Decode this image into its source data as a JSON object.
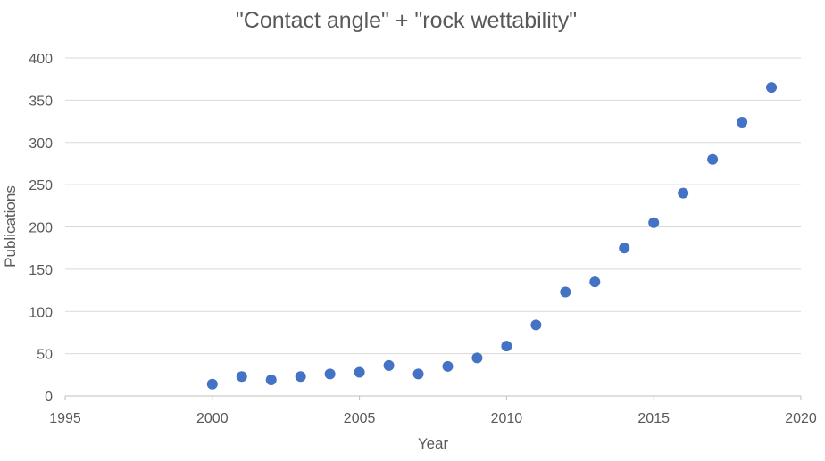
{
  "chart_data": {
    "type": "scatter",
    "title": "\"Contact angle\" + \"rock wettability\"",
    "xlabel": "Year",
    "ylabel": "Publications",
    "xlim": [
      1995,
      2020
    ],
    "ylim": [
      0,
      400
    ],
    "x_ticks": [
      1995,
      2000,
      2005,
      2010,
      2015,
      2020
    ],
    "y_ticks": [
      0,
      50,
      100,
      150,
      200,
      250,
      300,
      350,
      400
    ],
    "grid": true,
    "series": [
      {
        "name": "Publications",
        "color": "#4472c4",
        "points": [
          {
            "x": 2000,
            "y": 14
          },
          {
            "x": 2001,
            "y": 23
          },
          {
            "x": 2002,
            "y": 19
          },
          {
            "x": 2003,
            "y": 23
          },
          {
            "x": 2004,
            "y": 26
          },
          {
            "x": 2005,
            "y": 28
          },
          {
            "x": 2006,
            "y": 36
          },
          {
            "x": 2007,
            "y": 26
          },
          {
            "x": 2008,
            "y": 35
          },
          {
            "x": 2009,
            "y": 45
          },
          {
            "x": 2010,
            "y": 59
          },
          {
            "x": 2011,
            "y": 84
          },
          {
            "x": 2012,
            "y": 123
          },
          {
            "x": 2013,
            "y": 135
          },
          {
            "x": 2014,
            "y": 175
          },
          {
            "x": 2015,
            "y": 205
          },
          {
            "x": 2016,
            "y": 240
          },
          {
            "x": 2017,
            "y": 280
          },
          {
            "x": 2018,
            "y": 324
          },
          {
            "x": 2019,
            "y": 365
          }
        ]
      }
    ]
  }
}
